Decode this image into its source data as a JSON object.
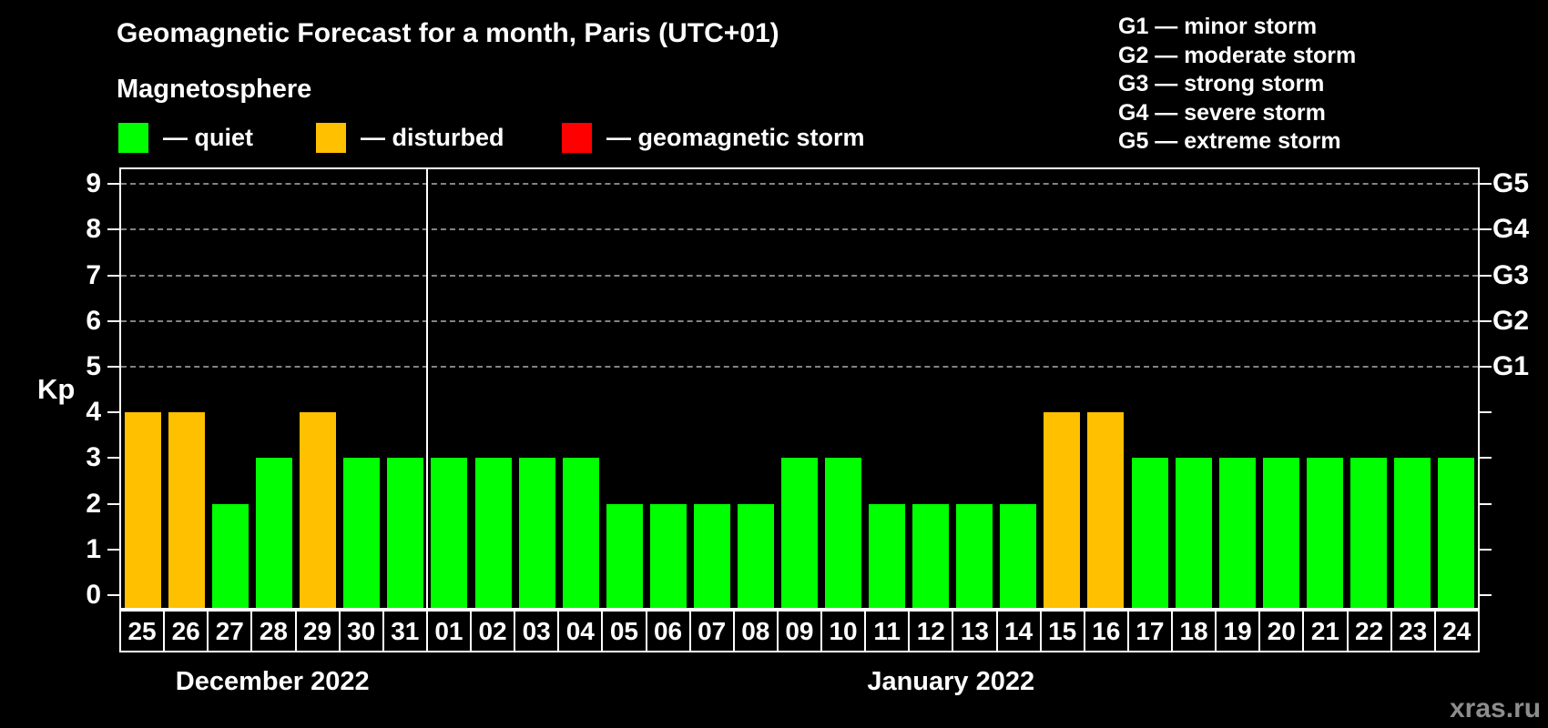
{
  "title": "Geomagnetic Forecast for a month, Paris (UTC+01)",
  "subtitle": "Magnetosphere",
  "legend": {
    "items": [
      {
        "name": "quiet",
        "label": "— quiet",
        "color": "#00ff00"
      },
      {
        "name": "disturbed",
        "label": "— disturbed",
        "color": "#ffc000"
      },
      {
        "name": "storm",
        "label": "— geomagnetic storm",
        "color": "#ff0000"
      }
    ]
  },
  "storm_scale_legend": {
    "lines": [
      "G1 — minor storm",
      "G2 — moderate storm",
      "G3 — strong storm",
      "G4 — severe storm",
      "G5 — extreme storm"
    ]
  },
  "watermark": "xras.ru",
  "chart_data": {
    "type": "bar",
    "title": "Geomagnetic Forecast for a month, Paris (UTC+01)",
    "ylabel": "Kp",
    "xlabel": "",
    "ylim": [
      -0.32,
      9.36
    ],
    "y_ticks": [
      0,
      1,
      2,
      3,
      4,
      5,
      6,
      7,
      8,
      9
    ],
    "grid": "dashed horizontal lines at storm levels only",
    "legend_position": "top",
    "storm_levels": [
      {
        "value": 5,
        "label": "G1"
      },
      {
        "value": 6,
        "label": "G2"
      },
      {
        "value": 7,
        "label": "G3"
      },
      {
        "value": 8,
        "label": "G4"
      },
      {
        "value": 9,
        "label": "G5"
      }
    ],
    "colors": {
      "quiet": "#00ff00",
      "disturbed": "#ffc000",
      "storm": "#ff0000"
    },
    "months": [
      {
        "label": "December 2022",
        "days": [
          {
            "day": "25",
            "kp": 4,
            "status": "disturbed"
          },
          {
            "day": "26",
            "kp": 4,
            "status": "disturbed"
          },
          {
            "day": "27",
            "kp": 2,
            "status": "quiet"
          },
          {
            "day": "28",
            "kp": 3,
            "status": "quiet"
          },
          {
            "day": "29",
            "kp": 4,
            "status": "disturbed"
          },
          {
            "day": "30",
            "kp": 3,
            "status": "quiet"
          },
          {
            "day": "31",
            "kp": 3,
            "status": "quiet"
          }
        ]
      },
      {
        "label": "January 2022",
        "days": [
          {
            "day": "01",
            "kp": 3,
            "status": "quiet"
          },
          {
            "day": "02",
            "kp": 3,
            "status": "quiet"
          },
          {
            "day": "03",
            "kp": 3,
            "status": "quiet"
          },
          {
            "day": "04",
            "kp": 3,
            "status": "quiet"
          },
          {
            "day": "05",
            "kp": 2,
            "status": "quiet"
          },
          {
            "day": "06",
            "kp": 2,
            "status": "quiet"
          },
          {
            "day": "07",
            "kp": 2,
            "status": "quiet"
          },
          {
            "day": "08",
            "kp": 2,
            "status": "quiet"
          },
          {
            "day": "09",
            "kp": 3,
            "status": "quiet"
          },
          {
            "day": "10",
            "kp": 3,
            "status": "quiet"
          },
          {
            "day": "11",
            "kp": 2,
            "status": "quiet"
          },
          {
            "day": "12",
            "kp": 2,
            "status": "quiet"
          },
          {
            "day": "13",
            "kp": 2,
            "status": "quiet"
          },
          {
            "day": "14",
            "kp": 2,
            "status": "quiet"
          },
          {
            "day": "15",
            "kp": 4,
            "status": "disturbed"
          },
          {
            "day": "16",
            "kp": 4,
            "status": "disturbed"
          },
          {
            "day": "17",
            "kp": 3,
            "status": "quiet"
          },
          {
            "day": "18",
            "kp": 3,
            "status": "quiet"
          },
          {
            "day": "19",
            "kp": 3,
            "status": "quiet"
          },
          {
            "day": "20",
            "kp": 3,
            "status": "quiet"
          },
          {
            "day": "21",
            "kp": 3,
            "status": "quiet"
          },
          {
            "day": "22",
            "kp": 3,
            "status": "quiet"
          },
          {
            "day": "23",
            "kp": 3,
            "status": "quiet"
          },
          {
            "day": "24",
            "kp": 3,
            "status": "quiet"
          }
        ]
      }
    ]
  }
}
